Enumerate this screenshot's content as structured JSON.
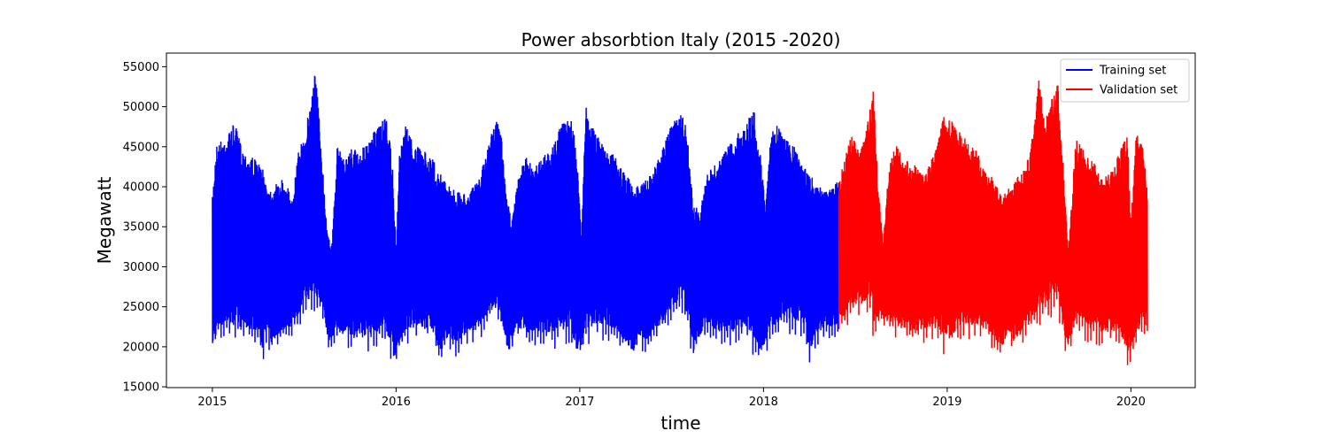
{
  "chart_data": {
    "type": "line",
    "title": "Power absorbtion Italy (2015 -2020)",
    "xlabel": "time",
    "ylabel": "Megawatt",
    "xlim": [
      2014.75,
      2020.35
    ],
    "ylim": [
      14900,
      56700
    ],
    "x_ticks": [
      2015,
      2016,
      2017,
      2018,
      2019,
      2020
    ],
    "x_tick_labels": [
      "2015",
      "2016",
      "2017",
      "2018",
      "2019",
      "2020"
    ],
    "y_ticks": [
      15000,
      20000,
      25000,
      30000,
      35000,
      40000,
      45000,
      50000,
      55000
    ],
    "y_tick_labels": [
      "15000",
      "20000",
      "25000",
      "30000",
      "35000",
      "40000",
      "45000",
      "50000",
      "55000"
    ],
    "grid": false,
    "legend_position": "top-right",
    "series": [
      {
        "name": "Training set",
        "color": "#0000ff",
        "x_range": [
          2015.0,
          2018.41
        ],
        "upper_envelope": [
          [
            2015.0,
            38700
          ],
          [
            2015.02,
            45300
          ],
          [
            2015.08,
            46500
          ],
          [
            2015.12,
            48000
          ],
          [
            2015.17,
            44500
          ],
          [
            2015.22,
            43800
          ],
          [
            2015.27,
            42500
          ],
          [
            2015.31,
            39800
          ],
          [
            2015.36,
            40500
          ],
          [
            2015.4,
            41500
          ],
          [
            2015.43,
            37800
          ],
          [
            2015.47,
            44500
          ],
          [
            2015.5,
            46500
          ],
          [
            2015.53,
            50000
          ],
          [
            2015.56,
            55200
          ],
          [
            2015.59,
            46000
          ],
          [
            2015.62,
            36000
          ],
          [
            2015.65,
            32500
          ],
          [
            2015.68,
            45000
          ],
          [
            2015.72,
            43500
          ],
          [
            2015.76,
            45000
          ],
          [
            2015.8,
            44500
          ],
          [
            2015.85,
            45500
          ],
          [
            2015.9,
            47800
          ],
          [
            2015.95,
            48600
          ],
          [
            2015.98,
            43000
          ],
          [
            2016.0,
            32000
          ],
          [
            2016.02,
            45000
          ],
          [
            2016.05,
            48000
          ],
          [
            2016.1,
            45200
          ],
          [
            2016.15,
            44500
          ],
          [
            2016.2,
            43500
          ],
          [
            2016.25,
            41300
          ],
          [
            2016.3,
            40000
          ],
          [
            2016.35,
            39200
          ],
          [
            2016.4,
            39500
          ],
          [
            2016.45,
            40800
          ],
          [
            2016.5,
            45000
          ],
          [
            2016.54,
            48600
          ],
          [
            2016.57,
            47200
          ],
          [
            2016.6,
            38800
          ],
          [
            2016.63,
            36000
          ],
          [
            2016.66,
            40500
          ],
          [
            2016.7,
            43800
          ],
          [
            2016.75,
            42800
          ],
          [
            2016.8,
            44000
          ],
          [
            2016.85,
            45000
          ],
          [
            2016.9,
            47800
          ],
          [
            2016.95,
            49000
          ],
          [
            2016.98,
            45000
          ],
          [
            2017.01,
            34000
          ],
          [
            2017.03,
            50200
          ],
          [
            2017.06,
            48500
          ],
          [
            2017.1,
            46200
          ],
          [
            2017.15,
            45000
          ],
          [
            2017.2,
            43500
          ],
          [
            2017.25,
            41500
          ],
          [
            2017.3,
            40200
          ],
          [
            2017.35,
            40600
          ],
          [
            2017.4,
            42000
          ],
          [
            2017.45,
            44800
          ],
          [
            2017.5,
            47800
          ],
          [
            2017.54,
            50100
          ],
          [
            2017.58,
            47500
          ],
          [
            2017.62,
            37800
          ],
          [
            2017.65,
            37000
          ],
          [
            2017.7,
            42000
          ],
          [
            2017.75,
            43000
          ],
          [
            2017.8,
            44800
          ],
          [
            2017.85,
            46500
          ],
          [
            2017.9,
            48000
          ],
          [
            2017.95,
            49600
          ],
          [
            2017.98,
            45000
          ],
          [
            2018.01,
            38000
          ],
          [
            2018.04,
            47000
          ],
          [
            2018.08,
            47800
          ],
          [
            2018.12,
            46000
          ],
          [
            2018.17,
            45000
          ],
          [
            2018.22,
            42500
          ],
          [
            2018.27,
            41000
          ],
          [
            2018.32,
            40000
          ],
          [
            2018.37,
            39800
          ],
          [
            2018.41,
            41000
          ]
        ],
        "lower_envelope": [
          [
            2015.0,
            18600
          ],
          [
            2015.05,
            20600
          ],
          [
            2015.1,
            20600
          ],
          [
            2015.15,
            20400
          ],
          [
            2015.2,
            20300
          ],
          [
            2015.25,
            20200
          ],
          [
            2015.27,
            17700
          ],
          [
            2015.3,
            20000
          ],
          [
            2015.32,
            18600
          ],
          [
            2015.35,
            19800
          ],
          [
            2015.38,
            20300
          ],
          [
            2015.42,
            21000
          ],
          [
            2015.46,
            22000
          ],
          [
            2015.5,
            23800
          ],
          [
            2015.55,
            24000
          ],
          [
            2015.6,
            23500
          ],
          [
            2015.63,
            19600
          ],
          [
            2015.7,
            20000
          ],
          [
            2015.75,
            19500
          ],
          [
            2015.8,
            19200
          ],
          [
            2015.85,
            19400
          ],
          [
            2015.9,
            19600
          ],
          [
            2015.95,
            19500
          ],
          [
            2015.99,
            17300
          ],
          [
            2016.03,
            19200
          ],
          [
            2016.08,
            20500
          ],
          [
            2016.15,
            20500
          ],
          [
            2016.2,
            20300
          ],
          [
            2016.24,
            16900
          ],
          [
            2016.28,
            19800
          ],
          [
            2016.32,
            18200
          ],
          [
            2016.36,
            19800
          ],
          [
            2016.42,
            20500
          ],
          [
            2016.48,
            21500
          ],
          [
            2016.55,
            23500
          ],
          [
            2016.61,
            17700
          ],
          [
            2016.65,
            21000
          ],
          [
            2016.72,
            19800
          ],
          [
            2016.8,
            19600
          ],
          [
            2016.88,
            19800
          ],
          [
            2016.95,
            20000
          ],
          [
            2016.98,
            17500
          ],
          [
            2017.02,
            19500
          ],
          [
            2017.08,
            20800
          ],
          [
            2017.15,
            20600
          ],
          [
            2017.2,
            20200
          ],
          [
            2017.29,
            17400
          ],
          [
            2017.32,
            19600
          ],
          [
            2017.36,
            18800
          ],
          [
            2017.42,
            20500
          ],
          [
            2017.5,
            22500
          ],
          [
            2017.56,
            24000
          ],
          [
            2017.62,
            17800
          ],
          [
            2017.68,
            21500
          ],
          [
            2017.75,
            20000
          ],
          [
            2017.82,
            19800
          ],
          [
            2017.9,
            20500
          ],
          [
            2017.98,
            17500
          ],
          [
            2018.03,
            19800
          ],
          [
            2018.1,
            21500
          ],
          [
            2018.16,
            21500
          ],
          [
            2018.22,
            21200
          ],
          [
            2018.25,
            17500
          ],
          [
            2018.3,
            20500
          ],
          [
            2018.35,
            21000
          ],
          [
            2018.41,
            21200
          ]
        ]
      },
      {
        "name": "Validation set",
        "color": "#ff0000",
        "x_range": [
          2018.41,
          2020.09
        ],
        "upper_envelope": [
          [
            2018.41,
            40500
          ],
          [
            2018.44,
            43500
          ],
          [
            2018.48,
            46500
          ],
          [
            2018.52,
            44500
          ],
          [
            2018.55,
            46000
          ],
          [
            2018.58,
            50000
          ],
          [
            2018.6,
            52500
          ],
          [
            2018.62,
            41500
          ],
          [
            2018.65,
            33000
          ],
          [
            2018.68,
            42000
          ],
          [
            2018.72,
            45500
          ],
          [
            2018.76,
            43500
          ],
          [
            2018.8,
            43000
          ],
          [
            2018.84,
            42500
          ],
          [
            2018.88,
            41500
          ],
          [
            2018.92,
            44000
          ],
          [
            2018.95,
            46500
          ],
          [
            2018.98,
            49000
          ],
          [
            2019.02,
            48500
          ],
          [
            2019.06,
            47000
          ],
          [
            2019.1,
            46000
          ],
          [
            2019.15,
            45000
          ],
          [
            2019.2,
            42500
          ],
          [
            2019.25,
            41000
          ],
          [
            2019.3,
            38500
          ],
          [
            2019.35,
            41000
          ],
          [
            2019.4,
            41500
          ],
          [
            2019.45,
            44000
          ],
          [
            2019.48,
            49500
          ],
          [
            2019.5,
            53500
          ],
          [
            2019.53,
            48000
          ],
          [
            2019.57,
            51000
          ],
          [
            2019.6,
            53700
          ],
          [
            2019.63,
            43500
          ],
          [
            2019.66,
            32000
          ],
          [
            2019.7,
            46000
          ],
          [
            2019.75,
            44500
          ],
          [
            2019.8,
            43000
          ],
          [
            2019.85,
            41000
          ],
          [
            2019.9,
            42500
          ],
          [
            2019.95,
            45000
          ],
          [
            2019.98,
            46500
          ],
          [
            2020.0,
            36000
          ],
          [
            2020.03,
            47000
          ],
          [
            2020.06,
            46000
          ],
          [
            2020.09,
            40000
          ]
        ],
        "lower_envelope": [
          [
            2018.41,
            21400
          ],
          [
            2018.45,
            22500
          ],
          [
            2018.5,
            23500
          ],
          [
            2018.55,
            24000
          ],
          [
            2018.58,
            24500
          ],
          [
            2018.6,
            20200
          ],
          [
            2018.64,
            23000
          ],
          [
            2018.7,
            21000
          ],
          [
            2018.76,
            20500
          ],
          [
            2018.82,
            20000
          ],
          [
            2018.88,
            20500
          ],
          [
            2018.94,
            21000
          ],
          [
            2018.98,
            18500
          ],
          [
            2019.02,
            19000
          ],
          [
            2019.08,
            20500
          ],
          [
            2019.15,
            21000
          ],
          [
            2019.22,
            20800
          ],
          [
            2019.29,
            17600
          ],
          [
            2019.33,
            20200
          ],
          [
            2019.36,
            18700
          ],
          [
            2019.42,
            20800
          ],
          [
            2019.5,
            22500
          ],
          [
            2019.55,
            23500
          ],
          [
            2019.6,
            24000
          ],
          [
            2019.65,
            18500
          ],
          [
            2019.7,
            21500
          ],
          [
            2019.76,
            20500
          ],
          [
            2019.82,
            20000
          ],
          [
            2019.88,
            20300
          ],
          [
            2019.94,
            20000
          ],
          [
            2019.98,
            17200
          ],
          [
            2020.02,
            19000
          ],
          [
            2020.06,
            21000
          ],
          [
            2020.09,
            21000
          ]
        ]
      }
    ]
  }
}
